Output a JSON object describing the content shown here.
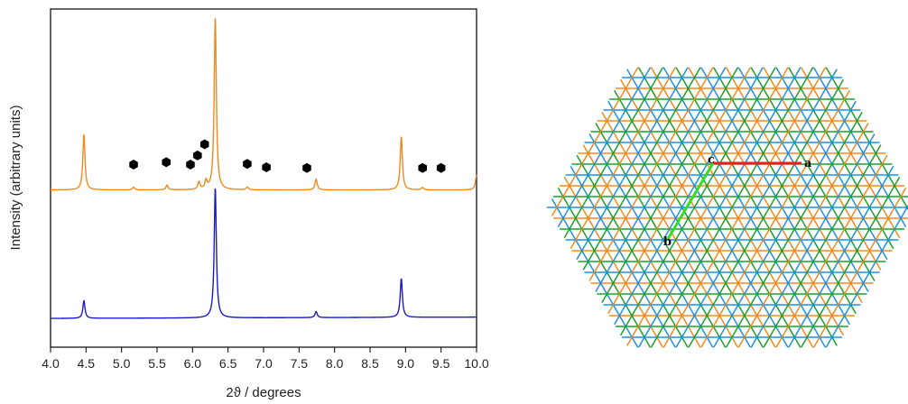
{
  "chart_data": {
    "type": "line",
    "xlabel": "2ϑ / degrees",
    "ylabel": "Intensity (arbitrary units)",
    "xlim": [
      4.0,
      10.0
    ],
    "ylim": [
      0,
      1
    ],
    "xticks": [
      "4.0",
      "4.5",
      "5.0",
      "5.5",
      "6.0",
      "6.5",
      "7.0",
      "7.5",
      "8.0",
      "8.5",
      "9.0",
      "9.5",
      "10.0"
    ],
    "yticks": [],
    "grid": false,
    "series": [
      {
        "color": "#f08a1e",
        "baseline": 0.465,
        "peaks": [
          {
            "x": 4.47,
            "h": 0.165
          },
          {
            "x": 5.17,
            "h": 0.008
          },
          {
            "x": 5.64,
            "h": 0.014
          },
          {
            "x": 6.09,
            "h": 0.022
          },
          {
            "x": 6.19,
            "h": 0.024
          },
          {
            "x": 6.32,
            "h": 0.51
          },
          {
            "x": 6.77,
            "h": 0.008
          },
          {
            "x": 7.74,
            "h": 0.032
          },
          {
            "x": 8.94,
            "h": 0.158
          },
          {
            "x": 9.24,
            "h": 0.007
          },
          {
            "x": 10.0,
            "h": 0.045
          }
        ]
      },
      {
        "color": "#1a1acc",
        "baseline": 0.085,
        "peaks": [
          {
            "x": 4.47,
            "h": 0.052
          },
          {
            "x": 6.32,
            "h": 0.385
          },
          {
            "x": 7.74,
            "h": 0.018
          },
          {
            "x": 8.94,
            "h": 0.115
          }
        ]
      }
    ],
    "markers": {
      "shape": "hexagon",
      "color": "#000000",
      "points": [
        {
          "x": 5.17,
          "y": 0.54
        },
        {
          "x": 5.63,
          "y": 0.547
        },
        {
          "x": 5.97,
          "y": 0.54
        },
        {
          "x": 6.07,
          "y": 0.567
        },
        {
          "x": 6.17,
          "y": 0.6
        },
        {
          "x": 6.77,
          "y": 0.542
        },
        {
          "x": 7.04,
          "y": 0.532
        },
        {
          "x": 7.61,
          "y": 0.53
        },
        {
          "x": 9.24,
          "y": 0.53
        },
        {
          "x": 9.5,
          "y": 0.53
        }
      ]
    }
  },
  "lattice": {
    "colors": [
      "#1e90e0",
      "#f08a1e",
      "#1aa02a"
    ],
    "axis_labels": {
      "a": "a",
      "b": "b",
      "c": "c"
    },
    "axis_colors": {
      "a": "#ee1c1c",
      "b": "#33dd22"
    }
  }
}
